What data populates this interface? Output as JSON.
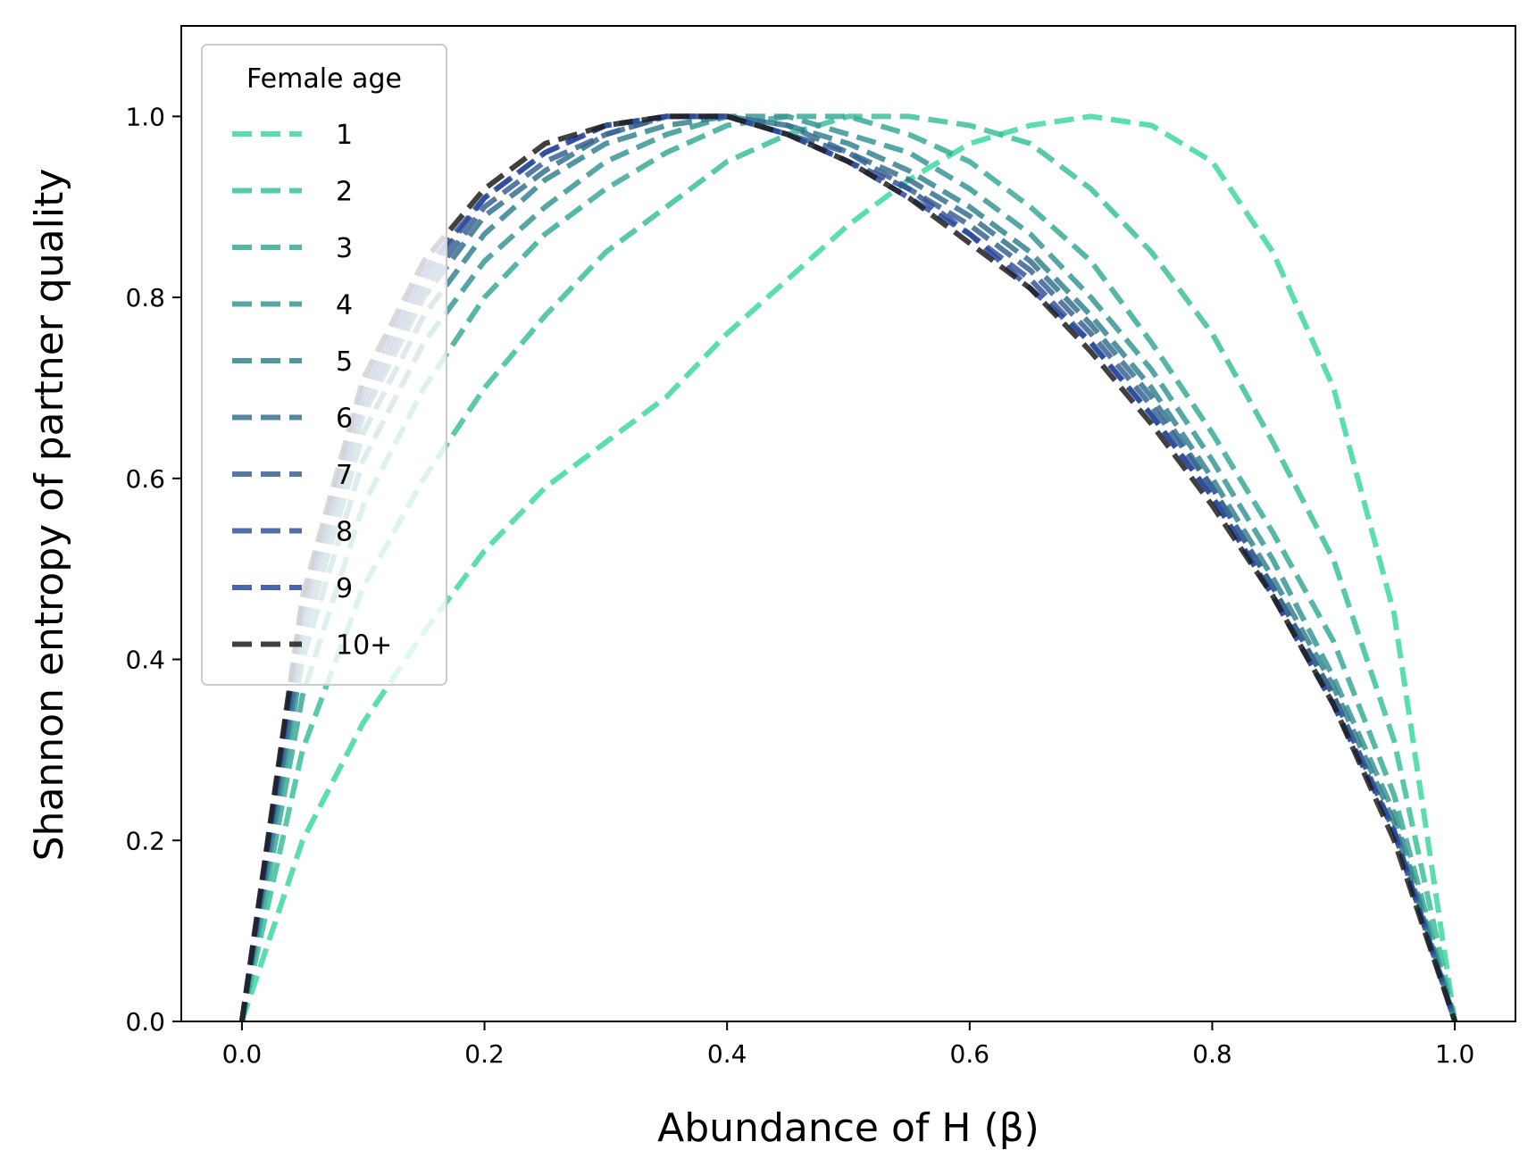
{
  "chart_data": {
    "type": "line",
    "title": "",
    "xlabel": "Abundance of H (β)",
    "ylabel": "Shannon entropy of partner quality",
    "xlim": [
      -0.05,
      1.05
    ],
    "ylim": [
      0.0,
      1.1
    ],
    "xticks": [
      0.0,
      0.2,
      0.4,
      0.6,
      0.8,
      1.0
    ],
    "yticks": [
      0.0,
      0.2,
      0.4,
      0.6,
      0.8,
      1.0
    ],
    "xtick_labels": [
      "0.0",
      "0.2",
      "0.4",
      "0.6",
      "0.8",
      "1.0"
    ],
    "ytick_labels": [
      "0.0",
      "0.2",
      "0.4",
      "0.6",
      "0.8",
      "1.0"
    ],
    "grid": false,
    "line_style": "dashed",
    "legend": {
      "title": "Female age",
      "placement": "upper-left"
    },
    "x": [
      0.0,
      0.05,
      0.1,
      0.15,
      0.2,
      0.25,
      0.3,
      0.35,
      0.4,
      0.45,
      0.5,
      0.55,
      0.6,
      0.65,
      0.7,
      0.75,
      0.8,
      0.85,
      0.9,
      0.95,
      1.0
    ],
    "series": [
      {
        "name": "1",
        "color": "#3dd8a0",
        "values": [
          0.0,
          0.2,
          0.33,
          0.43,
          0.52,
          0.59,
          0.64,
          0.69,
          0.76,
          0.82,
          0.88,
          0.93,
          0.97,
          0.99,
          1.0,
          0.99,
          0.95,
          0.85,
          0.7,
          0.45,
          0.0
        ]
      },
      {
        "name": "2",
        "color": "#3bbf9a",
        "values": [
          0.0,
          0.3,
          0.48,
          0.6,
          0.7,
          0.78,
          0.85,
          0.9,
          0.95,
          0.98,
          1.0,
          1.0,
          0.99,
          0.97,
          0.92,
          0.85,
          0.76,
          0.64,
          0.51,
          0.31,
          0.0
        ]
      },
      {
        "name": "3",
        "color": "#39aa96",
        "values": [
          0.0,
          0.36,
          0.57,
          0.7,
          0.8,
          0.87,
          0.92,
          0.96,
          0.99,
          1.0,
          1.0,
          0.98,
          0.95,
          0.9,
          0.84,
          0.75,
          0.65,
          0.54,
          0.42,
          0.25,
          0.0
        ]
      },
      {
        "name": "4",
        "color": "#379794",
        "values": [
          0.0,
          0.4,
          0.62,
          0.75,
          0.84,
          0.9,
          0.95,
          0.98,
          1.0,
          1.0,
          0.98,
          0.96,
          0.92,
          0.87,
          0.8,
          0.72,
          0.62,
          0.51,
          0.38,
          0.23,
          0.0
        ]
      },
      {
        "name": "5",
        "color": "#35838f",
        "values": [
          0.0,
          0.42,
          0.65,
          0.78,
          0.87,
          0.93,
          0.97,
          0.99,
          1.0,
          0.99,
          0.97,
          0.94,
          0.9,
          0.85,
          0.78,
          0.7,
          0.6,
          0.49,
          0.37,
          0.22,
          0.0
        ]
      },
      {
        "name": "6",
        "color": "#36718f",
        "values": [
          0.0,
          0.44,
          0.67,
          0.8,
          0.89,
          0.94,
          0.98,
          1.0,
          1.0,
          0.99,
          0.96,
          0.93,
          0.89,
          0.84,
          0.77,
          0.69,
          0.59,
          0.48,
          0.36,
          0.21,
          0.0
        ]
      },
      {
        "name": "7",
        "color": "#3a6392",
        "values": [
          0.0,
          0.45,
          0.68,
          0.81,
          0.9,
          0.95,
          0.98,
          1.0,
          1.0,
          0.98,
          0.96,
          0.92,
          0.88,
          0.83,
          0.76,
          0.68,
          0.59,
          0.48,
          0.36,
          0.21,
          0.0
        ]
      },
      {
        "name": "8",
        "color": "#365599",
        "values": [
          0.0,
          0.46,
          0.69,
          0.82,
          0.91,
          0.96,
          0.99,
          1.0,
          1.0,
          0.98,
          0.95,
          0.92,
          0.87,
          0.82,
          0.75,
          0.67,
          0.58,
          0.47,
          0.35,
          0.21,
          0.0
        ]
      },
      {
        "name": "9",
        "color": "#2c4aa0",
        "values": [
          0.0,
          0.46,
          0.7,
          0.83,
          0.91,
          0.96,
          0.99,
          1.0,
          1.0,
          0.98,
          0.95,
          0.91,
          0.87,
          0.81,
          0.75,
          0.67,
          0.58,
          0.47,
          0.35,
          0.21,
          0.0
        ]
      },
      {
        "name": "10+",
        "color": "#1f1f1f",
        "values": [
          0.0,
          0.47,
          0.71,
          0.84,
          0.92,
          0.97,
          0.99,
          1.0,
          1.0,
          0.98,
          0.95,
          0.91,
          0.86,
          0.81,
          0.74,
          0.66,
          0.57,
          0.47,
          0.35,
          0.2,
          0.0
        ]
      }
    ]
  }
}
